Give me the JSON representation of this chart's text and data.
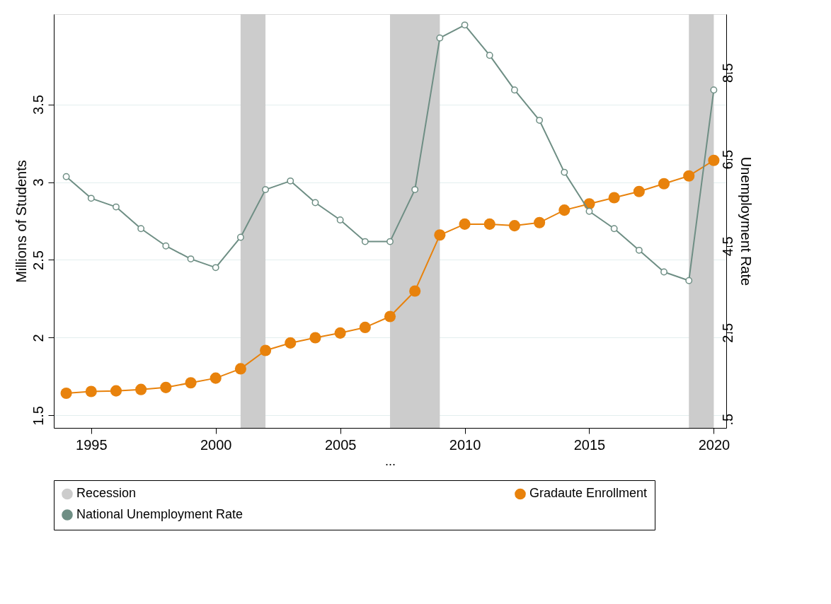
{
  "chart_data": {
    "type": "line",
    "xlabel": "...",
    "ylabel": "Millions of Students",
    "y2label": "Unemployment Rate",
    "x": [
      1994,
      1995,
      1996,
      1997,
      1998,
      1999,
      2000,
      2001,
      2002,
      2003,
      2004,
      2005,
      2006,
      2007,
      2008,
      2009,
      2010,
      2011,
      2012,
      2013,
      2014,
      2015,
      2016,
      2017,
      2018,
      2019,
      2020
    ],
    "series": [
      {
        "name": "Gradaute Enrollment",
        "color": "#e8820c",
        "marker": "circle",
        "values": [
          1.643,
          1.654,
          1.658,
          1.667,
          1.68,
          1.71,
          1.74,
          1.8,
          1.918,
          1.966,
          2.0,
          2.03,
          2.066,
          2.136,
          2.3,
          2.66,
          2.73,
          2.73,
          2.72,
          2.74,
          2.82,
          2.86,
          2.9,
          2.94,
          2.99,
          3.04,
          3.14
        ]
      },
      {
        "name": "National Unemployment Rate",
        "color": "#6e8e84",
        "marker": "circle",
        "axis": "y2",
        "values": [
          6.1,
          5.6,
          5.4,
          4.9,
          4.5,
          4.2,
          4.0,
          4.7,
          5.8,
          6.0,
          5.5,
          5.1,
          4.6,
          4.6,
          5.8,
          9.3,
          9.6,
          8.9,
          8.1,
          7.4,
          6.2,
          5.3,
          4.9,
          4.4,
          3.9,
          3.7,
          8.1
        ]
      }
    ],
    "bands": [
      {
        "axis": "x",
        "from": 2001,
        "to": 2002,
        "label": "Recession",
        "color": "#cccccc"
      },
      {
        "axis": "x",
        "from": 2007,
        "to": 2009,
        "color": "#cccccc"
      },
      {
        "axis": "x",
        "from": 2019,
        "to": 2020,
        "color": "#cccccc"
      }
    ],
    "xlim": [
      1993.5,
      2020.5
    ],
    "xticks": [
      1995,
      2000,
      2005,
      2010,
      2015,
      2020
    ],
    "ylim": [
      1.42,
      4.08
    ],
    "yticks": [
      1.5,
      2,
      2.5,
      3,
      3.5
    ],
    "y2lim": [
      0.3,
      9.85
    ],
    "y2ticks": [
      {
        "value": 0.5,
        "label": ".5"
      },
      2.5,
      4.5,
      6.5,
      8.5
    ],
    "grid": "y",
    "legend": "bottom",
    "line_style": "solid"
  }
}
